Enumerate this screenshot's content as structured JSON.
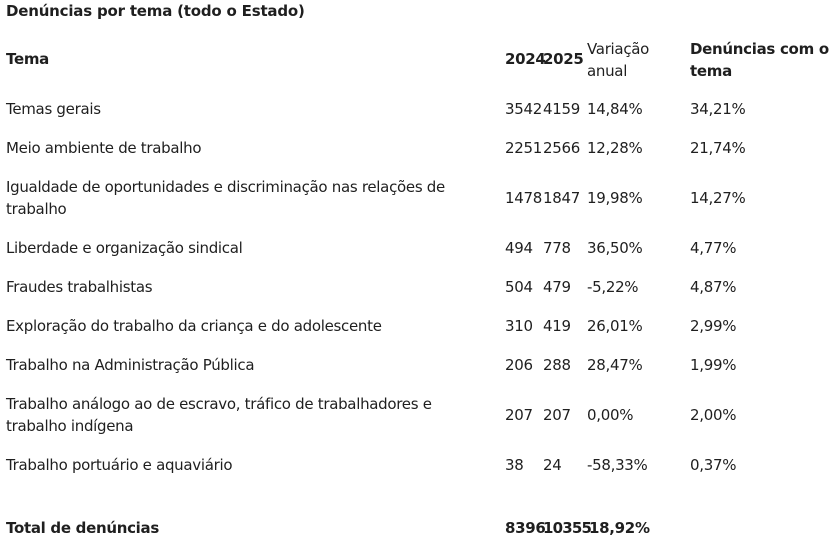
{
  "title": "Denúncias por tema (todo o Estado)",
  "headers": {
    "tema": "Tema",
    "y2024": "2024",
    "y2025": "2025",
    "variacao": "Variação anual",
    "denuncias": "Denúncias com o tema"
  },
  "rows": [
    {
      "tema": "Temas gerais",
      "y2024": "3542",
      "y2025": "4159",
      "variacao": "14,84%",
      "pct": "34,21%"
    },
    {
      "tema": "Meio ambiente de trabalho",
      "y2024": "2251",
      "y2025": "2566",
      "variacao": "12,28%",
      "pct": "21,74%"
    },
    {
      "tema": "Igualdade de oportunidades e discriminação nas relações de trabalho",
      "y2024": "1478",
      "y2025": "1847",
      "variacao": "19,98%",
      "pct": "14,27%"
    },
    {
      "tema": "Liberdade e organização sindical",
      "y2024": "494",
      "y2025": "778",
      "variacao": "36,50%",
      "pct": "4,77%"
    },
    {
      "tema": "Fraudes trabalhistas",
      "y2024": "504",
      "y2025": "479",
      "variacao": "-5,22%",
      "pct": "4,87%"
    },
    {
      "tema": "Exploração do trabalho da criança e do adolescente",
      "y2024": "310",
      "y2025": "419",
      "variacao": "26,01%",
      "pct": "2,99%"
    },
    {
      "tema": "Trabalho na Administração Pública",
      "y2024": "206",
      "y2025": "288",
      "variacao": "28,47%",
      "pct": "1,99%"
    },
    {
      "tema": "Trabalho análogo ao de escravo, tráfico de trabalhadores e trabalho indígena",
      "y2024": "207",
      "y2025": "207",
      "variacao": "0,00%",
      "pct": "2,00%"
    },
    {
      "tema": "Trabalho portuário e aquaviário",
      "y2024": "38",
      "y2025": "24",
      "variacao": "-58,33%",
      "pct": "0,37%"
    }
  ],
  "total": {
    "tema": "Total de denúncias",
    "y2024": "8396",
    "y2025": "10355",
    "variacao": "18,92%"
  }
}
